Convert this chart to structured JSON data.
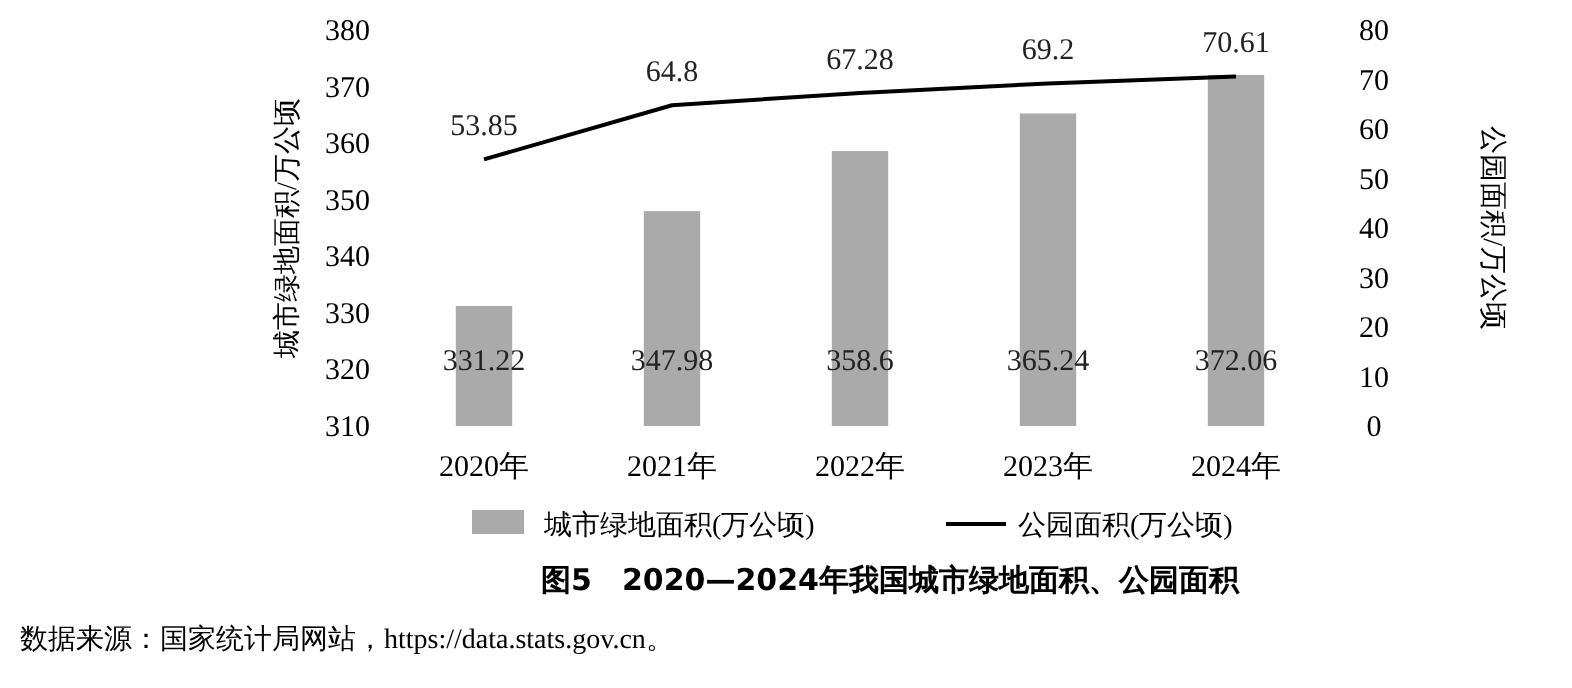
{
  "chart_data": {
    "type": "bar",
    "title": "图5　2020—2024年我国城市绿地面积、公园面积",
    "ylabel": "城市绿地面积/万公顷",
    "y2label": "公园面积/万公顷",
    "categories": [
      "2020年",
      "2021年",
      "2022年",
      "2023年",
      "2024年"
    ],
    "series": [
      {
        "name": "城市绿地面积(万公顷)",
        "color": "#aaaaaa",
        "values": [
          331.22,
          347.98,
          358.6,
          365.24,
          372.06
        ]
      },
      {
        "name": "公园面积(万公顷)",
        "type": "line",
        "axis": "y2",
        "color": "#000000",
        "values": [
          53.85,
          64.8,
          67.28,
          69.2,
          70.61
        ]
      }
    ],
    "ylim": [
      310,
      380
    ],
    "yticks": [
      310,
      320,
      330,
      340,
      350,
      360,
      370,
      380
    ],
    "y2lim": [
      0,
      80
    ],
    "y2ticks": [
      0,
      10,
      20,
      30,
      40,
      50,
      60,
      70,
      80
    ],
    "data_labels": true,
    "legend": "bottom",
    "marker": "none",
    "annotations": [
      "数据来源：国家统计局网站，https://data.stats.gov.cn。"
    ]
  }
}
